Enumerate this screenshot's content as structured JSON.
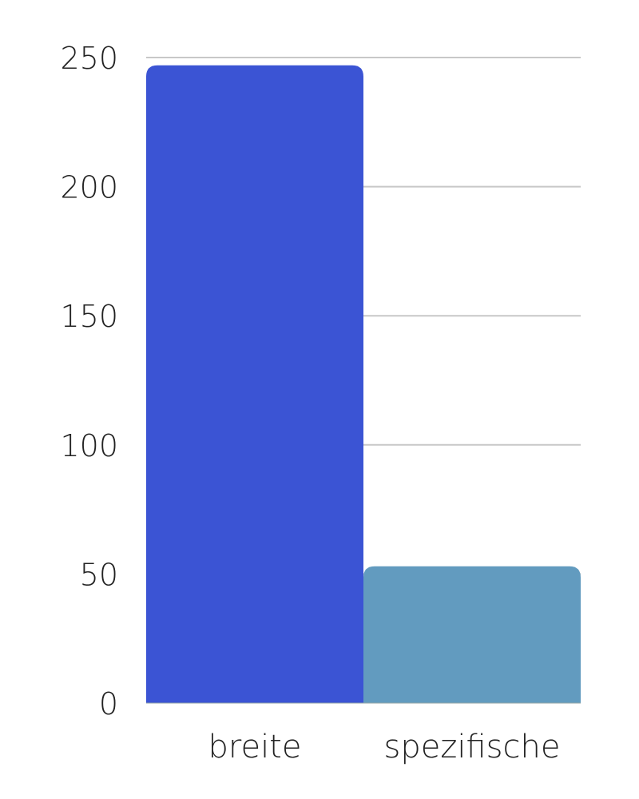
{
  "chart_data": {
    "type": "bar",
    "title": "",
    "xlabel": "",
    "ylabel": "",
    "categories": [
      "breite",
      "spezifische"
    ],
    "values": [
      247,
      53
    ],
    "colors": [
      "#3b54d4",
      "#629bbf"
    ],
    "ylim": [
      0,
      250
    ],
    "yticks": [
      0,
      50,
      100,
      150,
      200,
      250
    ],
    "ytick_labels": [
      "0",
      "50",
      "100",
      "150",
      "200",
      "250"
    ],
    "grid": true,
    "gridline_color": "#c8c8c8",
    "legend": "none"
  }
}
